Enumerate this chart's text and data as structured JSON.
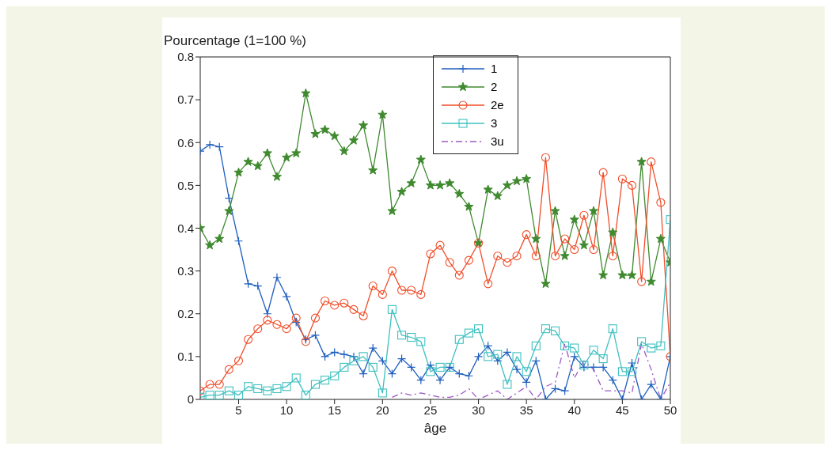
{
  "chart_data": {
    "type": "line",
    "ylabel": "Pourcentage (1=100 %)",
    "xlabel": "âge",
    "x": [
      1,
      2,
      3,
      4,
      5,
      6,
      7,
      8,
      9,
      10,
      11,
      12,
      13,
      14,
      15,
      16,
      17,
      18,
      19,
      20,
      21,
      22,
      23,
      24,
      25,
      26,
      27,
      28,
      29,
      30,
      31,
      32,
      33,
      34,
      35,
      36,
      37,
      38,
      39,
      40,
      41,
      42,
      43,
      44,
      45,
      46,
      47,
      48,
      49,
      50
    ],
    "xlim": [
      1,
      50
    ],
    "xticks": [
      5,
      10,
      15,
      20,
      25,
      30,
      35,
      40,
      45,
      50
    ],
    "ylim": [
      0,
      0.8
    ],
    "yticks": [
      0,
      0.1,
      0.2,
      0.3,
      0.4,
      0.5,
      0.6,
      0.7,
      0.8
    ],
    "legend": "top",
    "series": [
      {
        "name": "1",
        "color": "#1f5fbf",
        "marker": "cross",
        "line_style": "solid",
        "values": [
          0.58,
          0.595,
          0.59,
          0.47,
          0.37,
          0.27,
          0.265,
          0.2,
          0.285,
          0.24,
          0.18,
          0.14,
          0.15,
          0.1,
          0.11,
          0.105,
          0.1,
          0.06,
          0.12,
          0.09,
          0.06,
          0.095,
          0.075,
          0.045,
          0.08,
          0.045,
          0.075,
          0.06,
          0.055,
          0.1,
          0.125,
          0.09,
          0.11,
          0.07,
          0.04,
          0.09,
          0,
          0.025,
          0.02,
          0.1,
          0.075,
          0.075,
          0.075,
          0.045,
          0,
          0.085,
          0,
          0.035,
          0,
          0.1
        ]
      },
      {
        "name": "2",
        "color": "#3f8a2f",
        "marker": "star",
        "line_style": "solid",
        "values": [
          0.4,
          0.36,
          0.375,
          0.44,
          0.53,
          0.555,
          0.545,
          0.575,
          0.52,
          0.565,
          0.575,
          0.715,
          0.62,
          0.63,
          0.615,
          0.58,
          0.605,
          0.64,
          0.535,
          0.665,
          0.44,
          0.485,
          0.505,
          0.56,
          0.5,
          0.5,
          0.505,
          0.48,
          0.45,
          0.365,
          0.49,
          0.475,
          0.5,
          0.51,
          0.515,
          0.375,
          0.27,
          0.44,
          0.335,
          0.42,
          0.36,
          0.44,
          0.29,
          0.39,
          0.29,
          0.29,
          0.555,
          0.275,
          0.375,
          0.32
        ]
      },
      {
        "name": "2e",
        "color": "#f04e2a",
        "marker": "circle",
        "line_style": "solid",
        "values": [
          0.02,
          0.035,
          0.035,
          0.07,
          0.09,
          0.14,
          0.165,
          0.185,
          0.175,
          0.165,
          0.19,
          0.135,
          0.19,
          0.23,
          0.22,
          0.225,
          0.21,
          0.195,
          0.265,
          0.245,
          0.3,
          0.255,
          0.255,
          0.245,
          0.34,
          0.36,
          0.32,
          0.29,
          0.325,
          0.365,
          0.27,
          0.335,
          0.32,
          0.335,
          0.385,
          0.335,
          0.565,
          0.335,
          0.375,
          0.35,
          0.43,
          0.35,
          0.53,
          0.335,
          0.515,
          0.5,
          0.275,
          0.555,
          0.46,
          0.1
        ]
      },
      {
        "name": "3",
        "color": "#3fc0c0",
        "marker": "square",
        "line_style": "solid",
        "values": [
          0.005,
          0.01,
          0.01,
          0.02,
          0.01,
          0.03,
          0.025,
          0.02,
          0.025,
          0.03,
          0.05,
          0.01,
          0.035,
          0.045,
          0.055,
          0.075,
          0.09,
          0.1,
          0.075,
          0.015,
          0.21,
          0.15,
          0.145,
          0.135,
          0.065,
          0.075,
          0.075,
          0.14,
          0.155,
          0.165,
          0.1,
          0.105,
          0.035,
          0.1,
          0.065,
          0.125,
          0.165,
          0.16,
          0.125,
          0.12,
          0.08,
          0.115,
          0.095,
          0.165,
          0.065,
          0.065,
          0.135,
          0.12,
          0.125,
          0.42
        ]
      },
      {
        "name": "3u",
        "color": "#9b59c6",
        "marker": "none",
        "line_style": "dashed",
        "values": [
          null,
          null,
          null,
          null,
          null,
          null,
          null,
          null,
          null,
          null,
          null,
          null,
          null,
          null,
          null,
          null,
          null,
          null,
          null,
          null,
          0.005,
          0.015,
          0.01,
          0.015,
          0.01,
          0.005,
          0.005,
          0.01,
          0.025,
          0,
          0.01,
          0.02,
          0,
          0.015,
          0.03,
          0,
          0.03,
          0.04,
          0.13,
          0.05,
          0.09,
          0.07,
          0.02,
          0.02,
          0.02,
          0.015,
          0.13,
          0.07,
          0,
          0.04
        ]
      }
    ]
  }
}
